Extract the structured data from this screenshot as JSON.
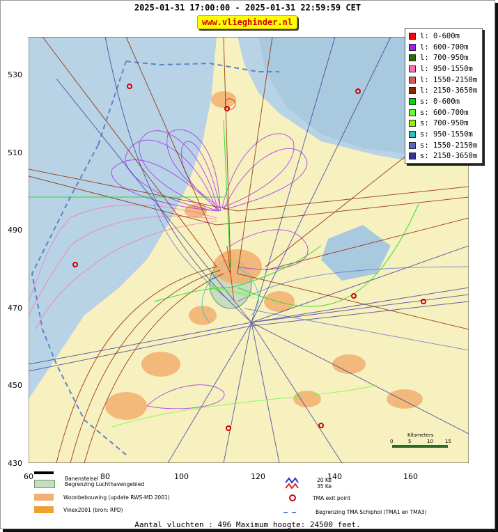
{
  "title": "2025-01-31 17:00:00 - 2025-01-31 22:59:59 CET",
  "site_label": "www.vlieghinder.nl",
  "y_axis_ticks": [
    "530",
    "510",
    "490",
    "470",
    "450",
    "430"
  ],
  "x_axis_ticks": [
    "60",
    "80",
    "100",
    "120",
    "140",
    "160"
  ],
  "legend": [
    {
      "label": "l: 0-600m",
      "color": "#ff0000"
    },
    {
      "label": "l: 600-700m",
      "color": "#a020f0"
    },
    {
      "label": "l: 700-950m",
      "color": "#2e6b00"
    },
    {
      "label": "l: 950-1550m",
      "color": "#ff69b4"
    },
    {
      "label": "l: 1550-2150m",
      "color": "#cd5c5c"
    },
    {
      "label": "l: 2150-3650m",
      "color": "#8b2500"
    },
    {
      "label": "s: 0-600m",
      "color": "#00dd00"
    },
    {
      "label": "s: 600-700m",
      "color": "#66ff33"
    },
    {
      "label": "s: 700-950m",
      "color": "#99ee00"
    },
    {
      "label": "s: 950-1550m",
      "color": "#33bbcc"
    },
    {
      "label": "s: 1550-2150m",
      "color": "#5566cc"
    },
    {
      "label": "s: 2150-3650m",
      "color": "#333399"
    }
  ],
  "map_legend": {
    "runways": "Banenstelsel",
    "airport_boundary": "Begrenzing Luchthavengebied",
    "housing": "Woonbebouwing (update RWS-MD 2001)",
    "vinex": "Vinex2001 (bron: RPD)",
    "noise_20": "20 Ke",
    "noise_35": "35 Ke",
    "tma_exit": "TMA exit point",
    "tma_boundary": "Begrenzing TMA Schiphol  (TMA1 en TMA3)"
  },
  "scale_bar": {
    "title": "Kilometers",
    "ticks": [
      "0",
      "5",
      "10",
      "15"
    ]
  },
  "footer": "Aantal vluchten : 496 Maximum hoogte: 24500 feet.",
  "colors": {
    "sea": "#b9d3e6",
    "land": "#f7f1c0",
    "urban": "#f2b070",
    "water_inland": "#a9c9de",
    "tma_boundary": "#5a83c8",
    "exit_point": "#cc0000"
  }
}
